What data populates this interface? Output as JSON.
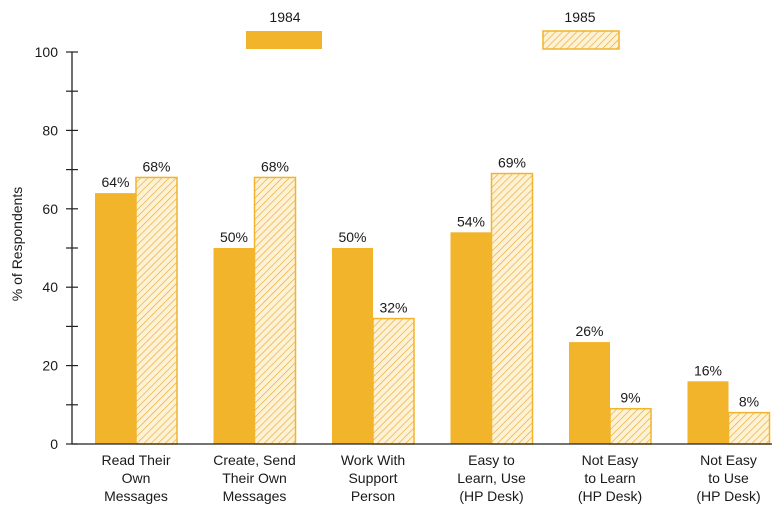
{
  "colors": {
    "solid_fill": "#f2b42b",
    "hatch_background": "#fdf2d6",
    "hatch_line": "#e9a92c",
    "axis": "#222222"
  },
  "chart_data": {
    "type": "bar",
    "title": "",
    "xlabel": "",
    "ylabel": "% of Respondents",
    "ylim": [
      0,
      100
    ],
    "yticks": [
      0,
      20,
      40,
      60,
      80,
      100
    ],
    "yminor_step": 10,
    "grid": false,
    "legend_position": "top",
    "categories": [
      [
        "Read Their",
        "Own",
        "Messages"
      ],
      [
        "Create, Send",
        "Their Own",
        "Messages"
      ],
      [
        "Work With",
        "Support",
        "Person"
      ],
      [
        "Easy to",
        "Learn, Use",
        "(HP Desk)"
      ],
      [
        "Not Easy",
        "to Learn",
        "(HP Desk)"
      ],
      [
        "Not Easy",
        "to Use",
        "(HP Desk)"
      ]
    ],
    "series": [
      {
        "name": "1984",
        "style": "solid",
        "values": [
          64,
          50,
          50,
          54,
          26,
          16
        ],
        "labels": [
          "64%",
          "50%",
          "50%",
          "54%",
          "26%",
          "16%"
        ]
      },
      {
        "name": "1985",
        "style": "hatched",
        "values": [
          68,
          68,
          32,
          69,
          9,
          8
        ],
        "labels": [
          "68%",
          "68%",
          "32%",
          "69%",
          "9%",
          "8%"
        ]
      }
    ]
  }
}
